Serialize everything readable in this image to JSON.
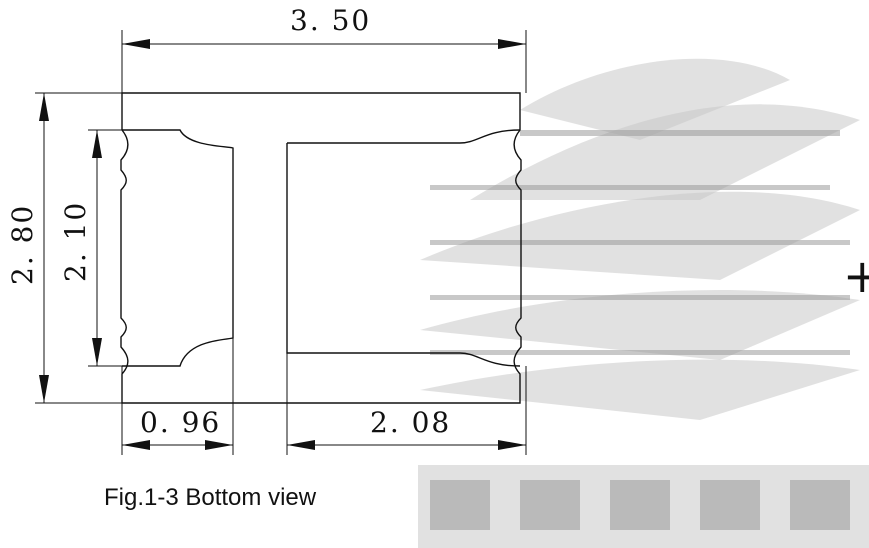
{
  "dimensions": {
    "overall_width": "3. 50",
    "overall_height": "2. 80",
    "pad_height": "2. 10",
    "left_pad_width": "0. 96",
    "right_pad_width": "2. 08"
  },
  "caption": "Fig.1-3 Bottom view",
  "polarity_mark": "+",
  "colors": {
    "line": "#111111",
    "background": "#ffffff"
  }
}
